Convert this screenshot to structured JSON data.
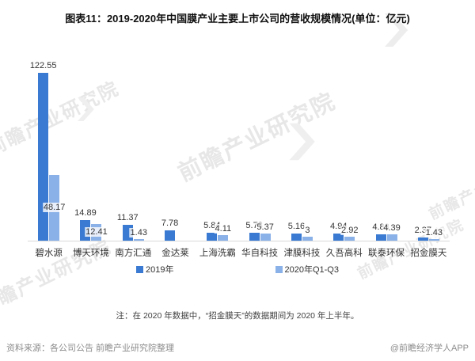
{
  "title": "图表11：2019-2020年中国膜产业主要上市公司的营收规模情况(单位：亿元)",
  "chart_data": {
    "type": "bar",
    "categories": [
      "碧水源",
      "博天环境",
      "南方汇通",
      "金达莱",
      "上海洗霸",
      "华自科技",
      "津膜科技",
      "久吾高科",
      "联泰环保",
      "招金膜天"
    ],
    "series": [
      {
        "name": "2019年",
        "color": "#3a7ad2",
        "values": [
          122.55,
          14.89,
          11.37,
          7.78,
          5.84,
          5.73,
          5.16,
          4.94,
          4.88,
          2.37
        ]
      },
      {
        "name": "2020年Q1-Q3",
        "color": "#8ab1e8",
        "values": [
          48.17,
          12.41,
          1.43,
          null,
          4.11,
          5.37,
          3,
          2.92,
          4.39,
          1.43
        ]
      }
    ],
    "unit": "亿元",
    "ylim": [
      0,
      130
    ],
    "y_axis_visible": false,
    "grid": false,
    "value_labels": true,
    "legend_position": "bottom"
  },
  "note": "注：在 2020 年数据中，“招金膜天”的数据期间为 2020 年上半年。",
  "footer": {
    "source": "资料来源：各公司公告 前瞻产业研究院整理",
    "credit": "@前瞻经济学人APP"
  },
  "watermark": {
    "text": "前瞻产业研究院"
  }
}
